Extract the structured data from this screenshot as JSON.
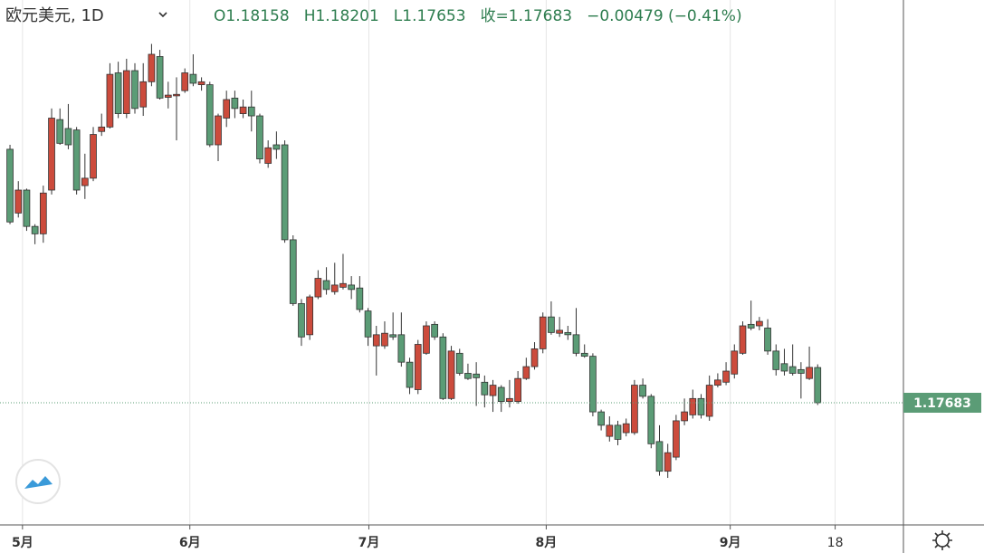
{
  "chart_data": {
    "type": "candlestick",
    "title": "欧元美元, 1D",
    "ohlc_labels": [
      "O1.18158",
      "H1.18201",
      "L1.17653",
      "收=1.17683",
      "−0.00479 (−0.41%)"
    ],
    "open": [
      1.211,
      1.2024,
      1.2055,
      1.2006,
      1.1996,
      1.2055,
      1.215,
      1.2138,
      1.2136,
      1.2061,
      1.2071,
      1.2134,
      1.214,
      1.2213,
      1.2158,
      1.2216,
      1.2167,
      1.2201,
      1.2235,
      1.218,
      1.2182,
      1.2189,
      1.2211,
      1.2197,
      1.2197,
      1.2116,
      1.2152,
      1.2179,
      1.2158,
      1.2167,
      1.2155,
      1.2091,
      1.2116,
      1.2116,
      1.1988,
      1.1902,
      1.186,
      1.1911,
      1.1933,
      1.1918,
      1.1924,
      1.1927,
      1.1923,
      1.1892,
      1.1845,
      1.1845,
      1.186,
      1.186,
      1.1823,
      1.1786,
      1.1835,
      1.1874,
      1.1857,
      1.1774,
      1.1835,
      1.1808,
      1.1807,
      1.1796,
      1.1778,
      1.1789,
      1.177,
      1.177,
      1.1801,
      1.1817,
      1.1841,
      1.1884,
      1.1862,
      1.1863,
      1.186,
      1.1835,
      1.1831,
      1.1756,
      1.1723,
      1.1738,
      1.1728,
      1.1728,
      1.1792,
      1.1777,
      1.1716,
      1.1676,
      1.1695,
      1.1744,
      1.1752,
      1.1774,
      1.175,
      1.1792,
      1.1796,
      1.1807,
      1.1835,
      1.1874,
      1.1872,
      1.1869,
      1.1838,
      1.1821,
      1.1817,
      1.1813,
      1.1801,
      1.18158
    ],
    "high": [
      1.2116,
      1.2067,
      1.2057,
      1.2009,
      1.2061,
      1.2165,
      1.2165,
      1.2171,
      1.214,
      1.2104,
      1.214,
      1.2158,
      1.2226,
      1.2228,
      1.2232,
      1.2226,
      1.2226,
      1.2252,
      1.2244,
      1.2201,
      1.2207,
      1.2219,
      1.2238,
      1.2207,
      1.2201,
      1.2158,
      1.2189,
      1.2189,
      1.2177,
      1.2189,
      1.2158,
      1.2122,
      1.2134,
      1.2122,
      1.1994,
      1.1908,
      1.1914,
      1.1947,
      1.1951,
      1.1957,
      1.1969,
      1.1939,
      1.1939,
      1.1896,
      1.1872,
      1.1878,
      1.189,
      1.189,
      1.1829,
      1.1853,
      1.1878,
      1.1878,
      1.1862,
      1.1845,
      1.1841,
      1.1821,
      1.1823,
      1.1805,
      1.1799,
      1.1792,
      1.1799,
      1.1811,
      1.1829,
      1.185,
      1.189,
      1.1905,
      1.1884,
      1.1872,
      1.1896,
      1.1847,
      1.1835,
      1.1759,
      1.175,
      1.1744,
      1.1747,
      1.1799,
      1.1801,
      1.178,
      1.1738,
      1.1713,
      1.1752,
      1.1774,
      1.1786,
      1.178,
      1.1805,
      1.1808,
      1.1823,
      1.1847,
      1.1878,
      1.1906,
      1.1884,
      1.1881,
      1.1847,
      1.1841,
      1.1847,
      1.1823,
      1.1844,
      1.18201
    ],
    "low": [
      1.2009,
      1.2018,
      1.2,
      1.1982,
      1.1984,
      1.2049,
      1.2116,
      1.211,
      1.2049,
      1.2043,
      1.2067,
      1.2128,
      1.2138,
      1.2152,
      1.2152,
      1.2158,
      1.2155,
      1.2195,
      1.2177,
      1.2165,
      1.2122,
      1.2186,
      1.2195,
      1.2189,
      1.2113,
      1.2094,
      1.214,
      1.2152,
      1.2152,
      1.2134,
      1.2091,
      1.2085,
      1.2097,
      1.1984,
      1.1899,
      1.1845,
      1.1853,
      1.1908,
      1.1914,
      1.1914,
      1.1921,
      1.1908,
      1.189,
      1.1845,
      1.1805,
      1.1841,
      1.1853,
      1.1817,
      1.178,
      1.178,
      1.1833,
      1.1853,
      1.1772,
      1.1772,
      1.1805,
      1.1799,
      1.1764,
      1.1762,
      1.1756,
      1.1756,
      1.1762,
      1.1767,
      1.1799,
      1.1813,
      1.1835,
      1.186,
      1.1857,
      1.1853,
      1.1831,
      1.1829,
      1.175,
      1.1731,
      1.1716,
      1.1711,
      1.1723,
      1.1725,
      1.1774,
      1.1707,
      1.167,
      1.1667,
      1.1691,
      1.1738,
      1.1747,
      1.1747,
      1.1744,
      1.1789,
      1.1792,
      1.1801,
      1.1833,
      1.1866,
      1.1866,
      1.1833,
      1.1805,
      1.1805,
      1.1805,
      1.1774,
      1.1799,
      1.17653
    ],
    "close": [
      1.2012,
      1.2055,
      1.2006,
      1.1996,
      1.2051,
      1.2152,
      1.2118,
      1.2116,
      1.2055,
      1.2071,
      1.213,
      1.214,
      1.2211,
      1.2158,
      1.2216,
      1.2165,
      1.2201,
      1.2238,
      1.2179,
      1.2183,
      1.2184,
      1.2213,
      1.2199,
      1.2201,
      1.2116,
      1.2155,
      1.2177,
      1.2165,
      1.2167,
      1.2155,
      1.2097,
      1.2112,
      1.211,
      1.1988,
      1.1902,
      1.1857,
      1.1911,
      1.1936,
      1.1921,
      1.1927,
      1.1929,
      1.1921,
      1.1894,
      1.1857,
      1.186,
      1.1862,
      1.1857,
      1.1823,
      1.1789,
      1.1847,
      1.1872,
      1.1857,
      1.1774,
      1.1838,
      1.1808,
      1.1801,
      1.1802,
      1.1779,
      1.1792,
      1.177,
      1.1774,
      1.1801,
      1.1817,
      1.1841,
      1.1884,
      1.1863,
      1.1866,
      1.186,
      1.1835,
      1.1831,
      1.1756,
      1.1738,
      1.1738,
      1.1719,
      1.174,
      1.1792,
      1.1777,
      1.1713,
      1.1676,
      1.1701,
      1.1744,
      1.1756,
      1.1774,
      1.1752,
      1.1792,
      1.1799,
      1.1811,
      1.1838,
      1.1872,
      1.1869,
      1.1878,
      1.1838,
      1.1813,
      1.1811,
      1.1808,
      1.1808,
      1.1816,
      1.17683
    ],
    "up_color": "#cc4b3c",
    "down_color": "#5b9c76",
    "ylim": [
      1.16036,
      1.23112
    ],
    "xlim": [
      -1.2,
      107.3
    ],
    "xticks": [
      {
        "value": 1.5,
        "label": "5月"
      },
      {
        "value": 21.6,
        "label": "6月"
      },
      {
        "value": 43.1,
        "label": "7月"
      },
      {
        "value": 64.4,
        "label": "8月"
      },
      {
        "value": 86.5,
        "label": "9月"
      },
      {
        "value": 99.1,
        "label": "18"
      }
    ],
    "grid": true,
    "last_price": 1.17683
  }
}
